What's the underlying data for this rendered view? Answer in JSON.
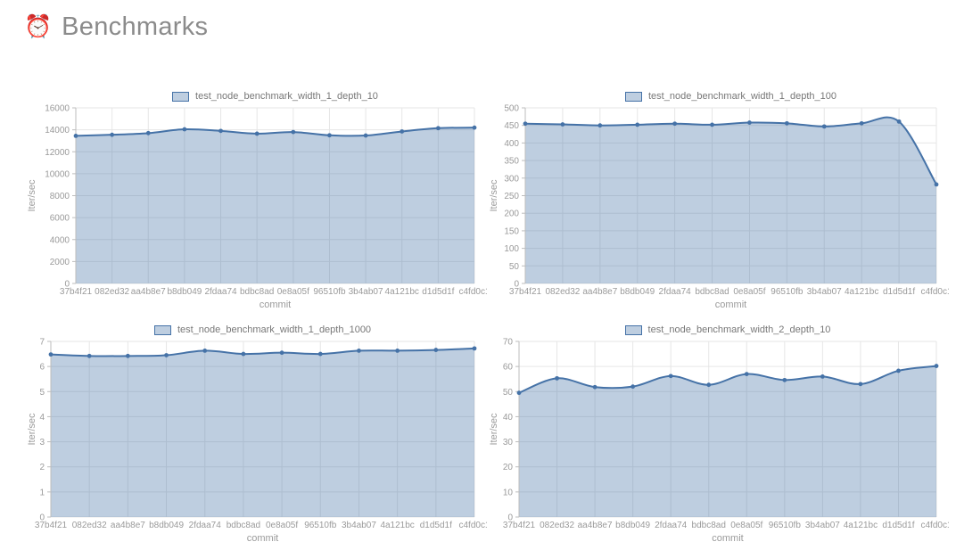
{
  "header": {
    "icon": "⏰",
    "title": "Benchmarks"
  },
  "colors": {
    "line": "#4572a7",
    "fill": "rgba(69,114,167,0.35)",
    "grid": "#e6e6e6",
    "axis": "#bdbdbd",
    "tick_label": "#9a9a9a",
    "axis_title": "#9a9a9a",
    "legend_label": "#777777",
    "page_title": "#8b8b8b",
    "background": "#ffffff"
  },
  "chart_data": [
    {
      "type": "area",
      "title": "test_node_benchmark_width_1_depth_10",
      "xlabel": "commit",
      "ylabel": "Iter/sec",
      "legend_position": "top",
      "grid": true,
      "categories": [
        "37b4f21",
        "082ed32",
        "aa4b8e7",
        "b8db049",
        "2fdaa74",
        "bdbc8ad",
        "0e8a05f",
        "96510fb",
        "3b4ab07",
        "4a121bc",
        "d1d5d1f",
        "c4fd0c1"
      ],
      "values": [
        13450,
        13550,
        13700,
        14050,
        13900,
        13650,
        13800,
        13500,
        13480,
        13850,
        14150,
        14200
      ],
      "ylim": [
        0,
        16000
      ],
      "ytick_step": 2000
    },
    {
      "type": "area",
      "title": "test_node_benchmark_width_1_depth_100",
      "xlabel": "commit",
      "ylabel": "Iter/sec",
      "legend_position": "top",
      "grid": true,
      "categories": [
        "37b4f21",
        "082ed32",
        "aa4b8e7",
        "b8db049",
        "2fdaa74",
        "bdbc8ad",
        "0e8a05f",
        "96510fb",
        "3b4ab07",
        "4a121bc",
        "d1d5d1f",
        "c4fd0c1"
      ],
      "values": [
        455,
        453,
        450,
        452,
        455,
        452,
        458,
        456,
        447,
        456,
        461,
        282
      ],
      "ylim": [
        0,
        500
      ],
      "ytick_step": 50
    },
    {
      "type": "area",
      "title": "test_node_benchmark_width_1_depth_1000",
      "xlabel": "commit",
      "ylabel": "Iter/sec",
      "legend_position": "top",
      "grid": true,
      "categories": [
        "37b4f21",
        "082ed32",
        "aa4b8e7",
        "b8db049",
        "2fdaa74",
        "bdbc8ad",
        "0e8a05f",
        "96510fb",
        "3b4ab07",
        "4a121bc",
        "d1d5d1f",
        "c4fd0c1"
      ],
      "values": [
        6.48,
        6.42,
        6.42,
        6.45,
        6.63,
        6.5,
        6.55,
        6.5,
        6.63,
        6.63,
        6.66,
        6.72
      ],
      "ylim": [
        0,
        7
      ],
      "ytick_step": 1
    },
    {
      "type": "area",
      "title": "test_node_benchmark_width_2_depth_10",
      "xlabel": "commit",
      "ylabel": "Iter/sec",
      "legend_position": "top",
      "grid": true,
      "categories": [
        "37b4f21",
        "082ed32",
        "aa4b8e7",
        "b8db049",
        "2fdaa74",
        "bdbc8ad",
        "0e8a05f",
        "96510fb",
        "3b4ab07",
        "4a121bc",
        "d1d5d1f",
        "c4fd0c1"
      ],
      "values": [
        49.5,
        55.3,
        51.8,
        52,
        56.2,
        52.7,
        57,
        54.6,
        56,
        53,
        58.3,
        60.2
      ],
      "ylim": [
        0,
        70
      ],
      "ytick_step": 10
    }
  ]
}
